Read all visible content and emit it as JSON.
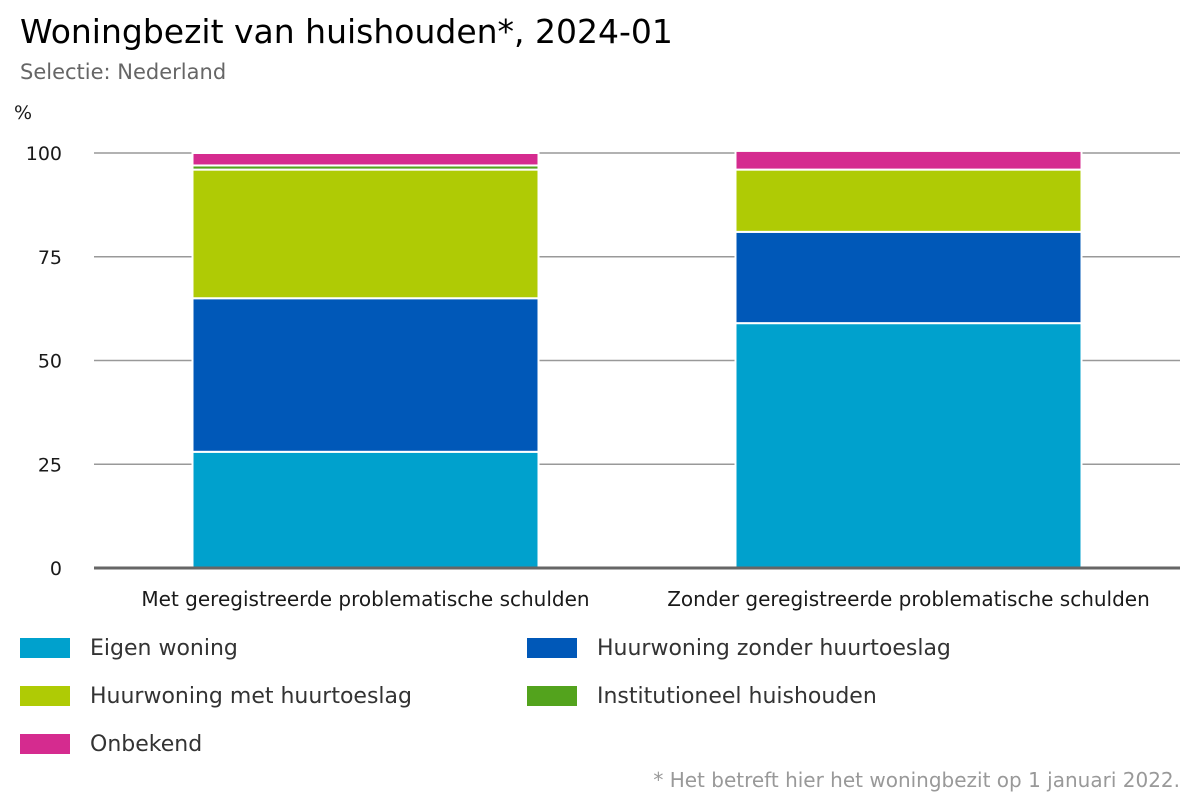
{
  "header": {
    "title": "Woningbezit van huishouden*, 2024-01",
    "subtitle": "Selectie: Nederland",
    "unit": "%"
  },
  "footnote": "* Het betreft hier het woningbezit op 1 januari 2022.",
  "chart_data": {
    "type": "bar",
    "stacked": true,
    "title": "Woningbezit van huishouden*, 2024-01",
    "subtitle": "Selectie: Nederland",
    "ylabel": "%",
    "ylim": [
      0,
      100
    ],
    "yticks": [
      0,
      25,
      50,
      75,
      100
    ],
    "grid": true,
    "legend_position": "bottom",
    "categories": [
      "Met geregistreerde problematische schulden",
      "Zonder geregistreerde problematische schulden"
    ],
    "series": [
      {
        "name": "Eigen woning",
        "color": "#00a1cd",
        "values": [
          28,
          59
        ]
      },
      {
        "name": "Huurwoning zonder huurtoeslag",
        "color": "#0058b8",
        "values": [
          37,
          22
        ]
      },
      {
        "name": "Huurwoning met huurtoeslag",
        "color": "#afcb05",
        "values": [
          31,
          15
        ]
      },
      {
        "name": "Institutioneel huishouden",
        "color": "#53a31d",
        "values": [
          1,
          0
        ]
      },
      {
        "name": "Onbekend",
        "color": "#d52b8f",
        "values": [
          3,
          4.5
        ]
      }
    ]
  }
}
